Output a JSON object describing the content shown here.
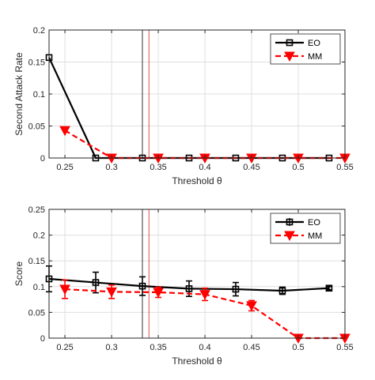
{
  "chart_data": [
    {
      "type": "line",
      "xlabel": "Threshold θ",
      "ylabel": "Second Attack Rate",
      "xlim": [
        0.233,
        0.55
      ],
      "ylim": [
        0,
        0.2
      ],
      "xticks": [
        0.25,
        0.3,
        0.35,
        0.4,
        0.45,
        0.5,
        0.55
      ],
      "yticks": [
        0,
        0.05,
        0.1,
        0.15,
        0.2
      ],
      "xtick_labels": [
        "0.25",
        "0.3",
        "0.35",
        "0.4",
        "0.45",
        "0.5",
        "0.55"
      ],
      "ytick_labels": [
        "0",
        "0.05",
        "0.1",
        "0.15",
        "0.2"
      ],
      "grid": true,
      "legend_position": "top-right",
      "vlines": [
        {
          "x": 0.333,
          "color": "#000000"
        },
        {
          "x": 0.34,
          "color": "#d62728"
        }
      ],
      "series": [
        {
          "name": "EO",
          "color": "#000000",
          "marker": "square",
          "line": "solid",
          "x": [
            0.233,
            0.283,
            0.333,
            0.383,
            0.433,
            0.483,
            0.533
          ],
          "y": [
            0.157,
            0,
            0,
            0,
            0,
            0,
            0
          ]
        },
        {
          "name": "MM",
          "color": "#ff0000",
          "marker": "triangle-down",
          "line": "dashed",
          "x": [
            0.25,
            0.3,
            0.35,
            0.4,
            0.45,
            0.5,
            0.55
          ],
          "y": [
            0.043,
            0,
            0,
            0,
            0,
            0,
            0
          ]
        }
      ]
    },
    {
      "type": "line",
      "xlabel": "Threshold θ",
      "ylabel": "Score",
      "xlim": [
        0.233,
        0.55
      ],
      "ylim": [
        0,
        0.25
      ],
      "xticks": [
        0.25,
        0.3,
        0.35,
        0.4,
        0.45,
        0.5,
        0.55
      ],
      "yticks": [
        0,
        0.05,
        0.1,
        0.15,
        0.2,
        0.25
      ],
      "xtick_labels": [
        "0.25",
        "0.3",
        "0.35",
        "0.4",
        "0.45",
        "0.5",
        "0.55"
      ],
      "ytick_labels": [
        "0",
        "0.05",
        "0.1",
        "0.15",
        "0.2",
        "0.25"
      ],
      "grid": true,
      "legend_position": "top-right",
      "vlines": [
        {
          "x": 0.333,
          "color": "#000000"
        },
        {
          "x": 0.34,
          "color": "#d62728"
        }
      ],
      "series": [
        {
          "name": "EO",
          "color": "#000000",
          "marker": "square",
          "line": "solid",
          "x": [
            0.233,
            0.283,
            0.333,
            0.383,
            0.433,
            0.483,
            0.533
          ],
          "y": [
            0.115,
            0.108,
            0.101,
            0.096,
            0.095,
            0.092,
            0.097
          ],
          "err": [
            0.025,
            0.02,
            0.018,
            0.015,
            0.013,
            0.007,
            0.003
          ]
        },
        {
          "name": "MM",
          "color": "#ff0000",
          "marker": "triangle-down",
          "line": "dashed",
          "x": [
            0.25,
            0.3,
            0.35,
            0.4,
            0.45,
            0.5,
            0.55
          ],
          "y": [
            0.095,
            0.09,
            0.089,
            0.085,
            0.063,
            0,
            0
          ],
          "err": [
            0.018,
            0.013,
            0.01,
            0.012,
            0.01,
            0,
            0
          ]
        }
      ]
    }
  ]
}
